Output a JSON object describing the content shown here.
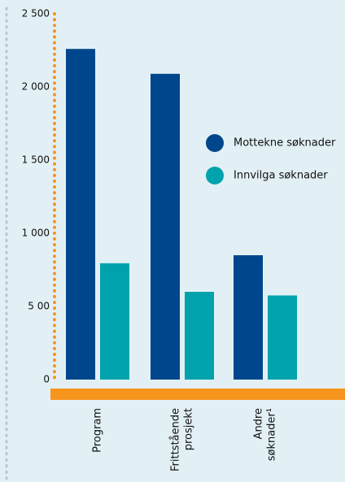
{
  "chart_data": {
    "type": "bar",
    "categories": [
      [
        "Program"
      ],
      [
        "Frittstående",
        "prosjekt"
      ],
      [
        "Andre",
        "søknader¹"
      ]
    ],
    "series": [
      {
        "name": "Mottekne søknader",
        "color": "#00468c",
        "values": [
          2260,
          2090,
          850
        ]
      },
      {
        "name": "Innvilga søknader",
        "color": "#00a3ad",
        "values": [
          795,
          600,
          575
        ]
      }
    ],
    "ylim": [
      0,
      2500
    ],
    "yticks": [
      0,
      {
        "value": 500,
        "label": "5 00"
      },
      {
        "value": 1000,
        "label": "1 000"
      },
      {
        "value": 1500,
        "label": "1 500"
      },
      {
        "value": 2000,
        "label": "2 000"
      },
      {
        "value": 2500,
        "label": "2 500"
      }
    ],
    "axis_color": "#f7941d"
  }
}
